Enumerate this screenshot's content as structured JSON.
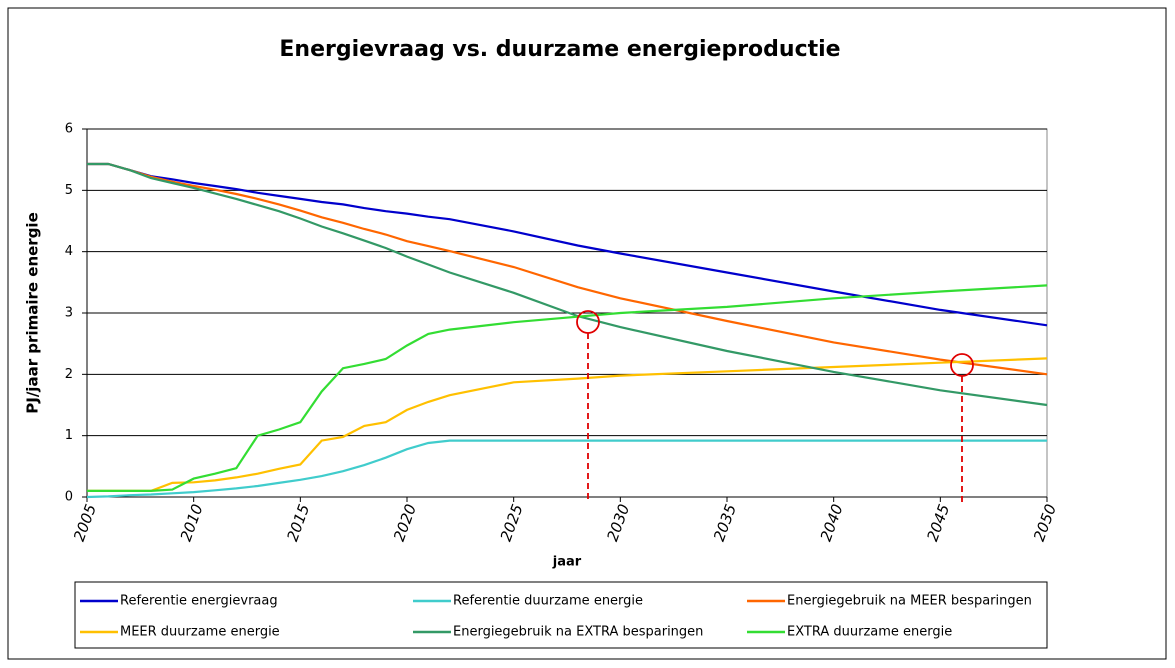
{
  "chart_data": {
    "type": "line",
    "title": "Energievraag vs. duurzame energieproductie",
    "xlabel": "jaar",
    "ylabel": "PJ/jaar primaire energie",
    "x": [
      2005,
      2006,
      2007,
      2008,
      2009,
      2010,
      2011,
      2012,
      2013,
      2014,
      2015,
      2016,
      2017,
      2018,
      2019,
      2020,
      2021,
      2022,
      2025,
      2028,
      2030,
      2035,
      2040,
      2045,
      2050
    ],
    "xlim": [
      2005,
      2050
    ],
    "xticks": [
      2005,
      2010,
      2015,
      2020,
      2025,
      2030,
      2035,
      2040,
      2045,
      2050
    ],
    "ylim": [
      0,
      6
    ],
    "yticks": [
      0,
      1,
      2,
      3,
      4,
      5,
      6
    ],
    "grid": true,
    "legend": "bottom",
    "series": [
      {
        "name": "Referentie energievraag",
        "color": "#0000cc",
        "values": [
          5.43,
          5.43,
          5.33,
          5.23,
          5.18,
          5.12,
          5.07,
          5.02,
          4.96,
          4.91,
          4.86,
          4.81,
          4.77,
          4.71,
          4.66,
          4.62,
          4.57,
          4.53,
          4.33,
          4.1,
          3.97,
          3.66,
          3.35,
          3.05,
          2.8
        ]
      },
      {
        "name": "Referentie duurzame energie",
        "color": "#40cccc",
        "values": [
          0,
          0.01,
          0.03,
          0.04,
          0.06,
          0.08,
          0.11,
          0.14,
          0.18,
          0.23,
          0.28,
          0.34,
          0.42,
          0.52,
          0.64,
          0.78,
          0.88,
          0.92,
          0.92,
          0.92,
          0.92,
          0.92,
          0.92,
          0.92,
          0.92
        ]
      },
      {
        "name": "Energiegebruik na MEER besparingen",
        "color": "#ff6600",
        "values": [
          5.43,
          5.43,
          5.33,
          5.22,
          5.14,
          5.07,
          5.01,
          4.94,
          4.86,
          4.77,
          4.67,
          4.56,
          4.47,
          4.37,
          4.28,
          4.17,
          4.09,
          4.01,
          3.75,
          3.42,
          3.24,
          2.87,
          2.52,
          2.24,
          2.0
        ]
      },
      {
        "name": "MEER duurzame energie",
        "color": "#ffc000",
        "values": [
          0.1,
          0.1,
          0.1,
          0.1,
          0.23,
          0.24,
          0.27,
          0.32,
          0.38,
          0.46,
          0.53,
          0.92,
          0.98,
          1.16,
          1.22,
          1.42,
          1.55,
          1.66,
          1.87,
          1.93,
          1.98,
          2.05,
          2.12,
          2.19,
          2.26
        ]
      },
      {
        "name": "Energiegebruik na EXTRA besparingen",
        "color": "#339966",
        "values": [
          5.43,
          5.43,
          5.33,
          5.2,
          5.12,
          5.04,
          4.95,
          4.86,
          4.76,
          4.66,
          4.54,
          4.41,
          4.3,
          4.18,
          4.06,
          3.92,
          3.79,
          3.66,
          3.33,
          2.95,
          2.77,
          2.38,
          2.04,
          1.74,
          1.5
        ]
      },
      {
        "name": "EXTRA duurzame energie",
        "color": "#33dd33",
        "values": [
          0.1,
          0.1,
          0.1,
          0.1,
          0.12,
          0.3,
          0.38,
          0.47,
          1.0,
          1.1,
          1.22,
          1.72,
          2.1,
          2.17,
          2.25,
          2.47,
          2.66,
          2.73,
          2.85,
          2.94,
          3.0,
          3.1,
          3.24,
          3.35,
          3.45
        ]
      }
    ]
  }
}
